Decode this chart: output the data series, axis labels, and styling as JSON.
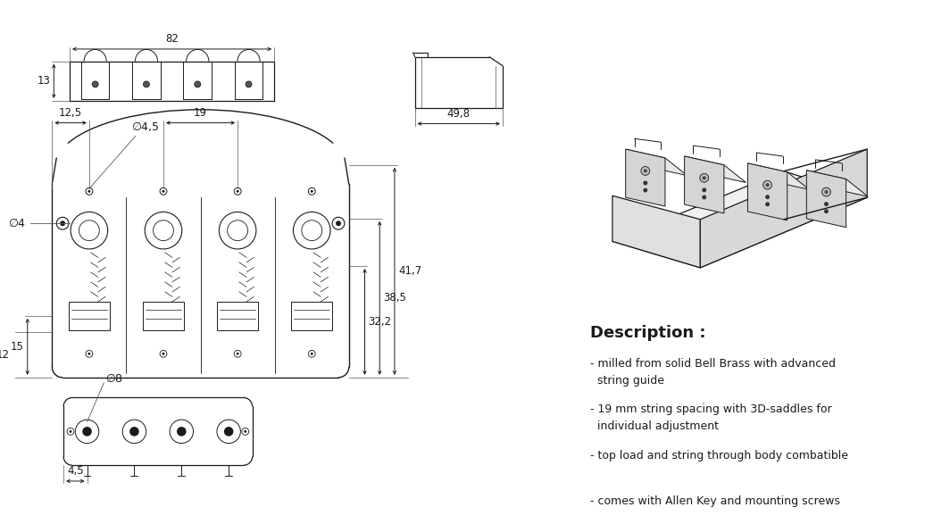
{
  "bg_color": "#ffffff",
  "line_color": "#1a1a1a",
  "dim_color": "#1a1a1a",
  "description_title": "Description :",
  "description_items": [
    "- milled from solid Bell Brass with advanced\n  string guide",
    "- 19 mm string spacing with 3D-saddles for\n  individual adjustment",
    "- top load and string through body combatible",
    "- comes with Allen Key and mounting screws"
  ],
  "dim_fontsize": 8.5,
  "desc_title_fontsize": 13,
  "desc_item_fontsize": 9
}
